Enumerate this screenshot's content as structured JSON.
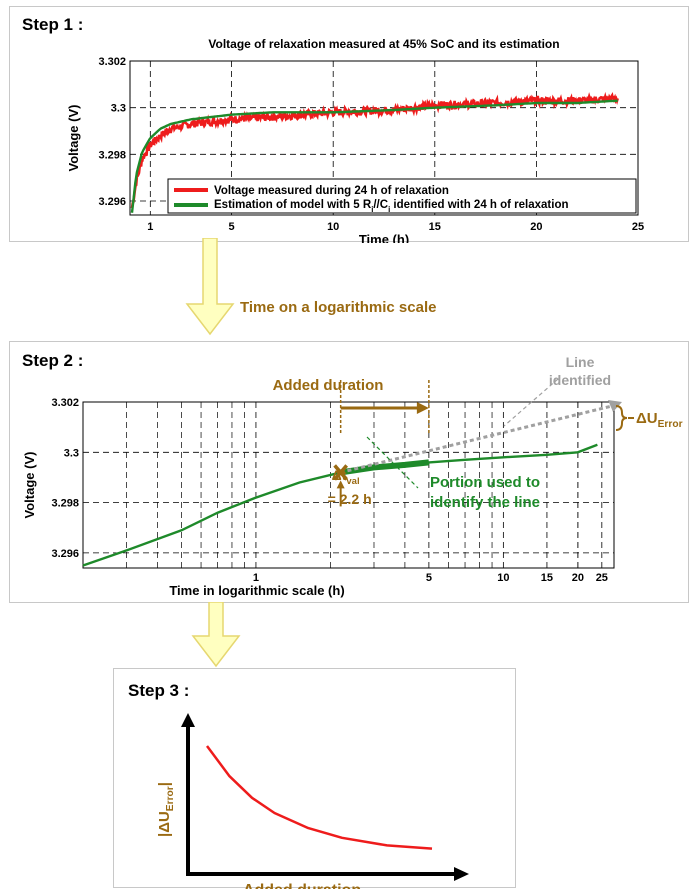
{
  "colors": {
    "measured": "#ee1c1c",
    "model": "#1e8a2a",
    "accent": "#9a6a12",
    "grey": "#a0a0a0",
    "arrow_fill": "#ffffc0",
    "arrow_stroke": "#e6d770"
  },
  "step1": {
    "title": "Step 1 :",
    "chart_title": "Voltage of relaxation measured at 45% SoC  and its estimation",
    "legend": {
      "measured": "Voltage measured during  24 h of relaxation",
      "model_pre": "Estimation of model with 5 R",
      "model_sub1": "i",
      "model_mid": "//C",
      "model_sub2": "i",
      "model_post": " identified with 24 h of relaxation"
    }
  },
  "transition1": {
    "label": "Time on a logarithmic scale"
  },
  "step2": {
    "title": "Step 2 :",
    "added_duration": "Added duration",
    "line_identified_1": "Line",
    "line_identified_2": "identified",
    "delta_u_main": "ΔU",
    "delta_u_sub": "Error",
    "delta_t_main": "Δt",
    "delta_t_sub": "val",
    "delta_t_value": "= 2.2 h",
    "portion_1": "Portion used to",
    "portion_2": "identify the line"
  },
  "step3": {
    "title": "Step 3 :",
    "ylabel_main": "|ΔU",
    "ylabel_sub": "Error",
    "ylabel_end": "|",
    "xlabel": "Added duration"
  },
  "chart_data": [
    {
      "type": "line",
      "title": "Voltage of relaxation measured at 45% SoC  and its estimation",
      "xlabel": "Time (h)",
      "ylabel": "Voltage (V)",
      "xlim": [
        0,
        25
      ],
      "ylim": [
        3.2954,
        3.302
      ],
      "xticks": [
        1,
        5,
        10,
        15,
        20,
        25
      ],
      "yticks": [
        3.296,
        3.298,
        3.3,
        3.302
      ],
      "ytick_labels": [
        "3.296",
        "3.298",
        "3.3",
        "3.302"
      ],
      "grid": true,
      "legend_position": "bottom-right",
      "series": [
        {
          "name": "Voltage measured during  24 h of relaxation",
          "x": [
            0.1,
            0.3,
            0.6,
            1,
            1.5,
            2,
            3,
            4,
            5,
            7,
            10,
            13,
            15,
            18,
            20,
            22,
            24
          ],
          "y": [
            3.2957,
            3.2968,
            3.2978,
            3.2984,
            3.2988,
            3.2991,
            3.2993,
            3.2994,
            3.2995,
            3.2996,
            3.2998,
            3.2999,
            3.3001,
            3.3002,
            3.3003,
            3.3003,
            3.3004
          ]
        },
        {
          "name": "Estimation of model with 5 Ri//Ci identified with 24 h of relaxation",
          "x": [
            0.1,
            0.3,
            0.6,
            1,
            1.5,
            2,
            3,
            4,
            5,
            7,
            10,
            13,
            15,
            18,
            20,
            22,
            24
          ],
          "y": [
            3.2955,
            3.2971,
            3.2981,
            3.2987,
            3.2991,
            3.2993,
            3.2995,
            3.2996,
            3.2997,
            3.2998,
            3.2998,
            3.2999,
            3.3,
            3.3001,
            3.3002,
            3.3002,
            3.3003
          ]
        }
      ]
    },
    {
      "type": "line",
      "xlabel": "Time in logarithmic scale (h)",
      "ylabel": "Voltage (V)",
      "x_scale": "log",
      "xlim": [
        0.2,
        28
      ],
      "ylim": [
        3.2954,
        3.302
      ],
      "xticks": [
        1,
        5,
        10,
        15,
        20,
        25
      ],
      "yticks": [
        3.296,
        3.298,
        3.3,
        3.302
      ],
      "ytick_labels": [
        "3.296",
        "3.298",
        "3.3",
        "3.302"
      ],
      "grid": true,
      "series": [
        {
          "x": [
            0.2,
            0.3,
            0.5,
            0.7,
            1,
            1.5,
            2.2,
            3,
            4,
            5,
            7,
            10,
            15,
            20,
            24
          ],
          "y": [
            3.2955,
            3.2961,
            3.2969,
            3.2976,
            3.2982,
            3.2988,
            3.2992,
            3.2994,
            3.2995,
            3.2996,
            3.2997,
            3.2998,
            3.2999,
            3.3,
            3.3003
          ]
        }
      ]
    },
    {
      "type": "line",
      "xlabel": "Added duration",
      "ylabel": "|ΔUError|",
      "series": [
        {
          "x": [
            0,
            0.1,
            0.2,
            0.3,
            0.45,
            0.6,
            0.8,
            1
          ],
          "y": [
            1,
            0.72,
            0.52,
            0.38,
            0.24,
            0.15,
            0.08,
            0.05
          ]
        }
      ]
    }
  ]
}
